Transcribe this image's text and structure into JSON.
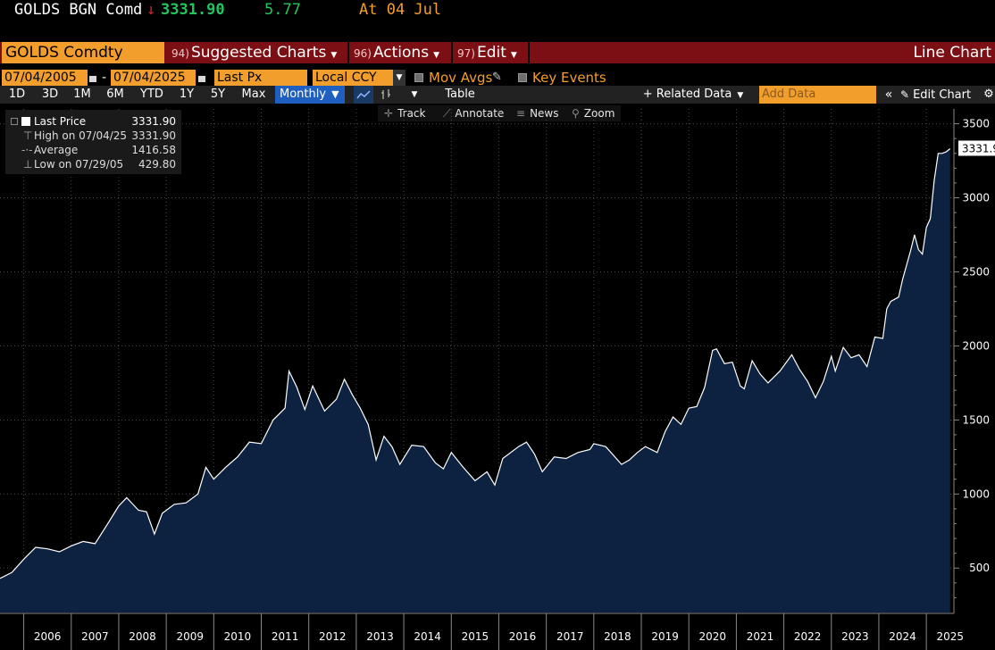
{
  "ticker": {
    "symbol": "GOLDS BGN Comd",
    "direction_arrow": "↓",
    "price": "3331.90",
    "change": "5.77",
    "at_label": "At 04 Jul"
  },
  "command_bar": {
    "security": "GOLDS Comdty",
    "suggested_num": "94)",
    "suggested_label": "Suggested Charts",
    "actions_num": "96)",
    "actions_label": "Actions",
    "edit_num": "97)",
    "edit_label": "Edit",
    "chart_type": "Line Chart"
  },
  "range_row": {
    "start_date": "07/04/2005",
    "separator": "-",
    "end_date": "07/04/2025",
    "field": "Last Px",
    "currency": "Local CCY",
    "mov_avgs": "Mov Avgs",
    "key_events": "Key Events"
  },
  "period_bar": {
    "periods": [
      "1D",
      "3D",
      "1M",
      "6M",
      "YTD",
      "1Y",
      "5Y",
      "Max"
    ],
    "frequency": "Monthly",
    "table": "Table",
    "related_data": "+ Related Data",
    "add_data_placeholder": "Add Data",
    "edit_chart": "Edit Chart"
  },
  "tools": {
    "track": "Track",
    "annotate": "Annotate",
    "news": "News",
    "zoom": "Zoom"
  },
  "legend": {
    "last_price_label": "Last Price",
    "last_price_value": "3331.90",
    "high_label": "High on 07/04/25",
    "high_value": "3331.90",
    "average_label": "Average",
    "average_value": "1416.58",
    "low_label": "Low on 07/29/05",
    "low_value": "429.80"
  },
  "colors": {
    "background": "#000000",
    "area_fill": "#0d2240",
    "line": "#ffffff",
    "accent_orange": "#f29e2c",
    "command_red": "#7c0f14",
    "price_green": "#22c55e",
    "down_red": "#e11d2a",
    "selected_blue": "#1f5fbf"
  },
  "chart_data": {
    "type": "area",
    "series_name": "Last Price",
    "frequency": "monthly",
    "last_value_label": "3331.90",
    "y_ticks": [
      500,
      1000,
      1500,
      2000,
      2500,
      3000,
      3500
    ],
    "y_range": [
      200,
      3600
    ],
    "x_range": [
      2005.5,
      2025.58
    ],
    "x_ticks": [
      "2006",
      "2007",
      "2008",
      "2009",
      "2010",
      "2011",
      "2012",
      "2013",
      "2014",
      "2015",
      "2016",
      "2017",
      "2018",
      "2019",
      "2020",
      "2021",
      "2022",
      "2023",
      "2024",
      "2025"
    ],
    "grid": "dotted",
    "points": [
      [
        "2005-07",
        430
      ],
      [
        "2005-10",
        470
      ],
      [
        "2006-01",
        560
      ],
      [
        "2006-04",
        640
      ],
      [
        "2006-07",
        630
      ],
      [
        "2006-10",
        610
      ],
      [
        "2007-01",
        650
      ],
      [
        "2007-04",
        680
      ],
      [
        "2007-07",
        665
      ],
      [
        "2007-10",
        790
      ],
      [
        "2008-01",
        920
      ],
      [
        "2008-03",
        975
      ],
      [
        "2008-06",
        890
      ],
      [
        "2008-08",
        880
      ],
      [
        "2008-10",
        730
      ],
      [
        "2008-12",
        870
      ],
      [
        "2009-03",
        930
      ],
      [
        "2009-06",
        940
      ],
      [
        "2009-09",
        1000
      ],
      [
        "2009-11",
        1180
      ],
      [
        "2010-01",
        1100
      ],
      [
        "2010-04",
        1180
      ],
      [
        "2010-07",
        1250
      ],
      [
        "2010-10",
        1350
      ],
      [
        "2011-01",
        1340
      ],
      [
        "2011-04",
        1500
      ],
      [
        "2011-07",
        1580
      ],
      [
        "2011-08",
        1830
      ],
      [
        "2011-10",
        1720
      ],
      [
        "2011-12",
        1570
      ],
      [
        "2012-02",
        1730
      ],
      [
        "2012-05",
        1560
      ],
      [
        "2012-08",
        1640
      ],
      [
        "2012-10",
        1775
      ],
      [
        "2012-12",
        1670
      ],
      [
        "2013-02",
        1580
      ],
      [
        "2013-04",
        1470
      ],
      [
        "2013-06",
        1230
      ],
      [
        "2013-08",
        1390
      ],
      [
        "2013-10",
        1320
      ],
      [
        "2013-12",
        1200
      ],
      [
        "2014-03",
        1330
      ],
      [
        "2014-06",
        1320
      ],
      [
        "2014-09",
        1210
      ],
      [
        "2014-11",
        1170
      ],
      [
        "2015-01",
        1280
      ],
      [
        "2015-04",
        1180
      ],
      [
        "2015-07",
        1090
      ],
      [
        "2015-10",
        1150
      ],
      [
        "2015-12",
        1060
      ],
      [
        "2016-02",
        1240
      ],
      [
        "2016-06",
        1320
      ],
      [
        "2016-08",
        1350
      ],
      [
        "2016-10",
        1270
      ],
      [
        "2016-12",
        1150
      ],
      [
        "2017-03",
        1250
      ],
      [
        "2017-06",
        1240
      ],
      [
        "2017-09",
        1280
      ],
      [
        "2017-12",
        1300
      ],
      [
        "2018-01",
        1340
      ],
      [
        "2018-04",
        1320
      ],
      [
        "2018-08",
        1200
      ],
      [
        "2018-10",
        1230
      ],
      [
        "2018-12",
        1280
      ],
      [
        "2019-02",
        1320
      ],
      [
        "2019-05",
        1280
      ],
      [
        "2019-07",
        1420
      ],
      [
        "2019-09",
        1520
      ],
      [
        "2019-11",
        1470
      ],
      [
        "2020-01",
        1580
      ],
      [
        "2020-03",
        1590
      ],
      [
        "2020-05",
        1720
      ],
      [
        "2020-07",
        1970
      ],
      [
        "2020-08",
        1980
      ],
      [
        "2020-10",
        1880
      ],
      [
        "2020-12",
        1890
      ],
      [
        "2021-02",
        1730
      ],
      [
        "2021-03",
        1710
      ],
      [
        "2021-05",
        1900
      ],
      [
        "2021-07",
        1810
      ],
      [
        "2021-09",
        1750
      ],
      [
        "2021-12",
        1830
      ],
      [
        "2022-03",
        1940
      ],
      [
        "2022-05",
        1840
      ],
      [
        "2022-07",
        1760
      ],
      [
        "2022-09",
        1650
      ],
      [
        "2022-11",
        1760
      ],
      [
        "2023-01",
        1930
      ],
      [
        "2023-02",
        1830
      ],
      [
        "2023-04",
        1990
      ],
      [
        "2023-06",
        1920
      ],
      [
        "2023-08",
        1940
      ],
      [
        "2023-10",
        1860
      ],
      [
        "2023-12",
        2060
      ],
      [
        "2024-02",
        2050
      ],
      [
        "2024-03",
        2250
      ],
      [
        "2024-04",
        2300
      ],
      [
        "2024-06",
        2330
      ],
      [
        "2024-07",
        2450
      ],
      [
        "2024-09",
        2640
      ],
      [
        "2024-10",
        2750
      ],
      [
        "2024-11",
        2650
      ],
      [
        "2024-12",
        2620
      ],
      [
        "2025-01",
        2800
      ],
      [
        "2025-02",
        2860
      ],
      [
        "2025-03",
        3120
      ],
      [
        "2025-04",
        3300
      ],
      [
        "2025-05",
        3300
      ],
      [
        "2025-06",
        3310
      ],
      [
        "2025-07",
        3331.9
      ]
    ]
  }
}
